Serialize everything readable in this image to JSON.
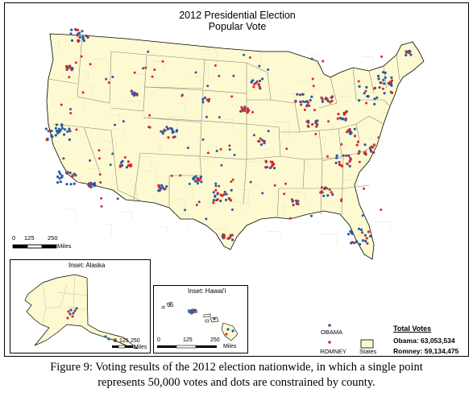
{
  "map": {
    "title_line1": "2012 Presidential Election",
    "title_line2": "Popular Vote",
    "land_color": "#fdfad2",
    "border_color": "#888877",
    "main_scale": {
      "ticks": [
        "0",
        "125",
        "250"
      ],
      "unit": "Miles"
    },
    "alaska_inset": {
      "title": "Inset: Alaska",
      "scale_ticks": [
        "0",
        "125",
        "250"
      ],
      "unit": "Miles"
    },
    "hawaii_inset": {
      "title": "Inset: Hawai'i",
      "scale_ticks": [
        "0",
        "125",
        "250"
      ],
      "unit": "Miles"
    },
    "legend": {
      "obama_label": "OBAMA",
      "romney_label": "ROMNEY",
      "states_label": "States",
      "obama_color": "#2a5aa8",
      "romney_color": "#d42a2a"
    },
    "totals": {
      "heading": "Total Votes",
      "obama_line": "Obama: 63,053,534",
      "romney_line": "Romney: 59,134,475"
    }
  },
  "caption": {
    "line1": "Figure 9: Voting results of the 2012 election nationwide, in which a single point",
    "line2": "represents 50,000 votes and dots are constrained by county."
  }
}
